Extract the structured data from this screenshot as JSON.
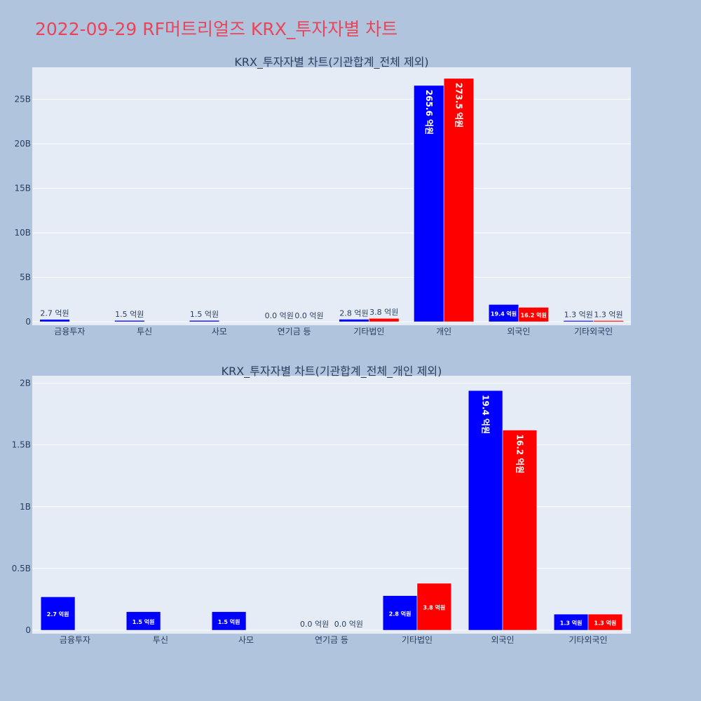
{
  "page": {
    "title": "2022-09-29 RF머트리얼즈 KRX_투자자별 차트"
  },
  "colors": {
    "background": "#b0c4de",
    "plot_bg": "#e5ecf6",
    "grid": "#ffffff",
    "series_a": "#0000ff",
    "series_b": "#ff0000",
    "title": "#e8455a",
    "text": "#2a3f5f"
  },
  "chart_data": [
    {
      "type": "bar",
      "title": "KRX_투자자별 차트(기관합계_전체 제외)",
      "categories": [
        "금융투자",
        "투신",
        "사모",
        "연기금 등",
        "기타법인",
        "개인",
        "외국인",
        "기타외국인"
      ],
      "yticks": [
        0,
        5,
        10,
        15,
        20,
        25
      ],
      "ytick_labels": [
        "0",
        "5B",
        "10B",
        "15B",
        "20B",
        "25B"
      ],
      "ylim": [
        0,
        28.6
      ],
      "grid": true,
      "series": [
        {
          "values": [
            0.27,
            0.15,
            0.15,
            0.0,
            0.28,
            26.56,
            1.94,
            0.13
          ],
          "labels": [
            "2.7 억원",
            "1.5 억원",
            "1.5 억원",
            "0.0 억원",
            "2.8 억원",
            "265.6 억원",
            "19.4 억원",
            "1.3 억원"
          ]
        },
        {
          "values": [
            0.0,
            0.0,
            0.0,
            0.0,
            0.38,
            27.35,
            1.62,
            0.13
          ],
          "labels": [
            "",
            "",
            "",
            "0.0 억원",
            "3.8 억원",
            "273.5 억원",
            "16.2 억원",
            "1.3 억원"
          ]
        }
      ]
    },
    {
      "type": "bar",
      "title": "KRX_투자자별 차트(기관합계_전체_개인 제외)",
      "categories": [
        "금융투자",
        "투신",
        "사모",
        "연기금 등",
        "기타법인",
        "외국인",
        "기타외국인"
      ],
      "yticks": [
        0,
        0.5,
        1,
        1.5,
        2
      ],
      "ytick_labels": [
        "0",
        "0.5B",
        "1B",
        "1.5B",
        "2B"
      ],
      "ylim": [
        0,
        2.06
      ],
      "grid": true,
      "series": [
        {
          "values": [
            0.27,
            0.15,
            0.15,
            0.0,
            0.28,
            1.94,
            0.13
          ],
          "labels": [
            "2.7 억원",
            "1.5 억원",
            "1.5 억원",
            "0.0 억원",
            "2.8 억원",
            "19.4 억원",
            "1.3 억원"
          ]
        },
        {
          "values": [
            0.0,
            0.0,
            0.0,
            0.0,
            0.38,
            1.62,
            0.13
          ],
          "labels": [
            "",
            "",
            "",
            "0.0 억원",
            "3.8 억원",
            "16.2 억원",
            "1.3 억원"
          ]
        }
      ]
    }
  ]
}
